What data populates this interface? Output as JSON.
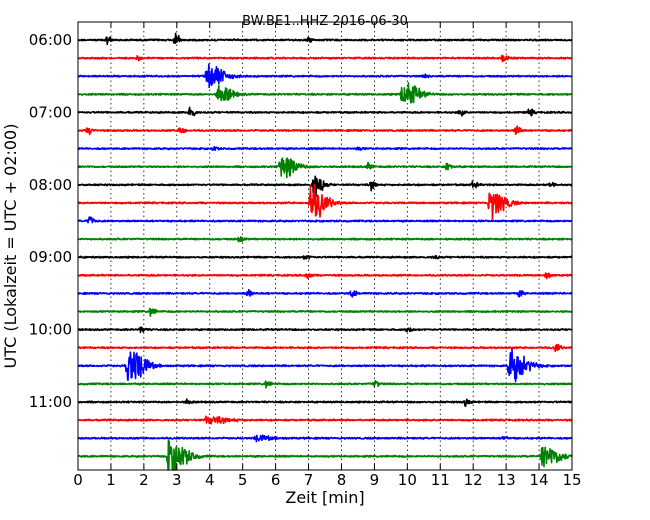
{
  "chart_data": {
    "type": "line",
    "title": "BW.BE1..HHZ 2016-06-30",
    "xlabel": "Zeit  [min]",
    "ylabel": "UTC (Lokalzeit = UTC + 02:00)",
    "xlim": [
      0,
      15
    ],
    "x_ticks": [
      "0",
      "1",
      "2",
      "3",
      "4",
      "5",
      "6",
      "7",
      "8",
      "9",
      "10",
      "11",
      "12",
      "13",
      "14",
      "15"
    ],
    "y_tick_labels": [
      {
        "label": "06:00",
        "row": 0
      },
      {
        "label": "07:00",
        "row": 4
      },
      {
        "label": "08:00",
        "row": 8
      },
      {
        "label": "09:00",
        "row": 12
      },
      {
        "label": "10:00",
        "row": 16
      },
      {
        "label": "11:00",
        "row": 20
      }
    ],
    "grid": "vertical dotted",
    "colors": [
      "#000000",
      "#ff0000",
      "#0000ff",
      "#008000"
    ],
    "rows": [
      {
        "start": "06:00",
        "events": [
          [
            0.85,
            0.5,
            0.1
          ],
          [
            2.95,
            0.8,
            0.1
          ],
          [
            7.0,
            0.2,
            0.1
          ]
        ]
      },
      {
        "start": "06:15",
        "events": [
          [
            1.8,
            0.3,
            0.1
          ],
          [
            12.9,
            0.5,
            0.1
          ]
        ]
      },
      {
        "start": "06:30",
        "events": [
          [
            3.9,
            1.4,
            0.4
          ],
          [
            10.5,
            0.15,
            0.1
          ]
        ]
      },
      {
        "start": "06:45",
        "events": [
          [
            4.25,
            1.1,
            0.3
          ],
          [
            9.85,
            1.5,
            0.35
          ]
        ]
      },
      {
        "start": "07:00",
        "events": [
          [
            3.4,
            0.8,
            0.1
          ],
          [
            11.6,
            0.4,
            0.1
          ],
          [
            13.7,
            0.4,
            0.1
          ]
        ]
      },
      {
        "start": "07:15",
        "events": [
          [
            0.3,
            0.4,
            0.1
          ],
          [
            3.1,
            0.5,
            0.1
          ],
          [
            13.3,
            0.7,
            0.1
          ]
        ]
      },
      {
        "start": "07:30",
        "events": [
          [
            4.1,
            0.2,
            0.1
          ],
          [
            8.5,
            0.15,
            0.1
          ]
        ]
      },
      {
        "start": "07:45",
        "events": [
          [
            6.15,
            1.3,
            0.35
          ],
          [
            8.8,
            0.4,
            0.1
          ],
          [
            11.2,
            0.4,
            0.1
          ]
        ]
      },
      {
        "start": "08:00",
        "events": [
          [
            7.15,
            1.4,
            0.2
          ],
          [
            8.9,
            0.5,
            0.1
          ],
          [
            12.0,
            0.4,
            0.1
          ],
          [
            14.3,
            0.3,
            0.1
          ]
        ]
      },
      {
        "start": "08:15",
        "events": [
          [
            7.05,
            2.0,
            0.35
          ],
          [
            12.5,
            1.6,
            0.35
          ]
        ]
      },
      {
        "start": "08:30",
        "events": [
          [
            0.35,
            0.6,
            0.1
          ]
        ]
      },
      {
        "start": "08:45",
        "events": [
          [
            4.9,
            0.3,
            0.1
          ]
        ]
      },
      {
        "start": "09:00",
        "events": [
          [
            6.9,
            0.3,
            0.1
          ],
          [
            10.8,
            0.2,
            0.1
          ]
        ]
      },
      {
        "start": "09:15",
        "events": [
          [
            6.95,
            0.4,
            0.1
          ],
          [
            14.2,
            0.4,
            0.1
          ]
        ]
      },
      {
        "start": "09:30",
        "events": [
          [
            5.15,
            0.4,
            0.1
          ],
          [
            8.3,
            0.4,
            0.1
          ],
          [
            13.4,
            0.3,
            0.1
          ]
        ]
      },
      {
        "start": "09:45",
        "events": [
          [
            2.2,
            0.5,
            0.1
          ]
        ]
      },
      {
        "start": "10:00",
        "events": [
          [
            1.9,
            0.3,
            0.1
          ],
          [
            10.0,
            0.3,
            0.1
          ]
        ]
      },
      {
        "start": "10:15",
        "events": [
          [
            14.5,
            0.5,
            0.1
          ]
        ]
      },
      {
        "start": "10:30",
        "events": [
          [
            1.5,
            2.0,
            0.4
          ],
          [
            13.1,
            1.8,
            0.4
          ]
        ]
      },
      {
        "start": "10:45",
        "events": [
          [
            5.7,
            0.4,
            0.1
          ],
          [
            9.0,
            0.4,
            0.1
          ]
        ]
      },
      {
        "start": "11:00",
        "events": [
          [
            3.3,
            0.3,
            0.1
          ],
          [
            11.75,
            0.4,
            0.1
          ]
        ]
      },
      {
        "start": "11:15",
        "events": [
          [
            3.9,
            0.4,
            0.5
          ]
        ]
      },
      {
        "start": "11:30",
        "events": [
          [
            5.4,
            0.3,
            0.4
          ],
          [
            12.9,
            0.2,
            0.1
          ]
        ]
      },
      {
        "start": "11:45",
        "events": [
          [
            2.75,
            2.0,
            0.4
          ],
          [
            14.1,
            1.3,
            0.4
          ]
        ]
      }
    ]
  }
}
